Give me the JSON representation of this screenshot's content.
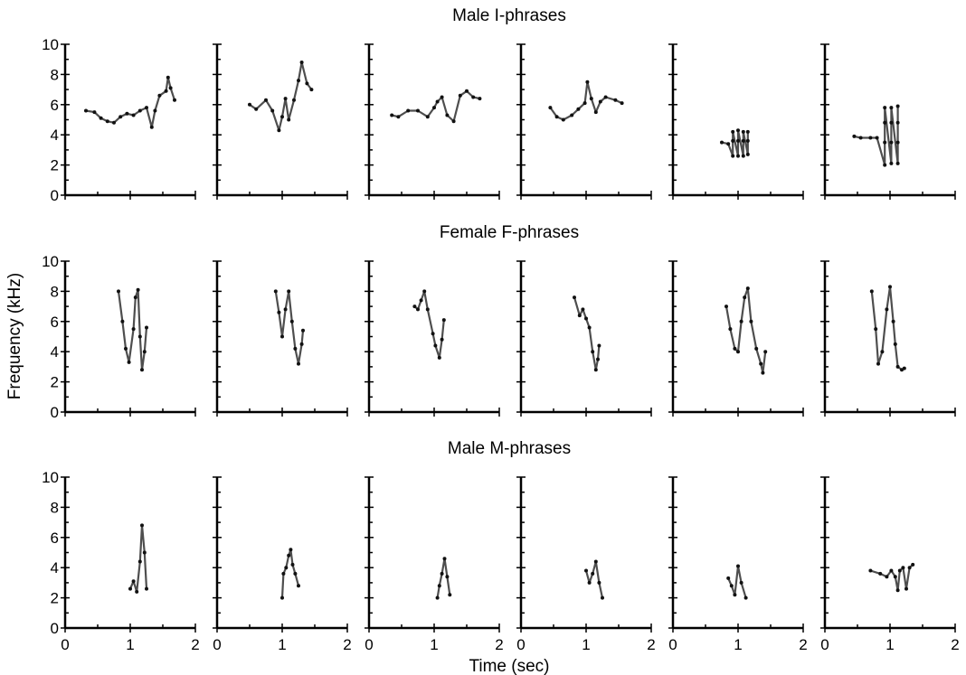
{
  "chart_data": {
    "type": "scatter",
    "ylabel": "Frequency (kHz)",
    "xlabel": "Time (sec)",
    "xlim": [
      0,
      2
    ],
    "ylim": [
      0,
      10
    ],
    "x_ticks": [
      0,
      1,
      2
    ],
    "y_ticks": [
      0,
      2,
      4,
      6,
      8,
      10
    ],
    "grid": false,
    "rows": [
      {
        "title": "Male I-phrases",
        "panels": [
          [
            [
              0.32,
              5.6
            ],
            [
              0.45,
              5.5
            ],
            [
              0.55,
              5.1
            ],
            [
              0.65,
              4.9
            ],
            [
              0.75,
              4.8
            ],
            [
              0.85,
              5.2
            ],
            [
              0.95,
              5.4
            ],
            [
              1.05,
              5.3
            ],
            [
              1.15,
              5.6
            ],
            [
              1.25,
              5.8
            ],
            [
              1.33,
              4.5
            ],
            [
              1.38,
              5.6
            ],
            [
              1.45,
              6.6
            ],
            [
              1.55,
              6.9
            ],
            [
              1.58,
              7.8
            ],
            [
              1.62,
              7.1
            ],
            [
              1.68,
              6.3
            ]
          ],
          [
            [
              0.5,
              6.0
            ],
            [
              0.6,
              5.7
            ],
            [
              0.75,
              6.3
            ],
            [
              0.85,
              5.6
            ],
            [
              0.95,
              4.3
            ],
            [
              1.0,
              5.2
            ],
            [
              1.05,
              6.4
            ],
            [
              1.1,
              5.0
            ],
            [
              1.18,
              6.3
            ],
            [
              1.25,
              7.6
            ],
            [
              1.3,
              8.8
            ],
            [
              1.38,
              7.4
            ],
            [
              1.45,
              7.0
            ]
          ],
          [
            [
              0.35,
              5.3
            ],
            [
              0.45,
              5.2
            ],
            [
              0.6,
              5.6
            ],
            [
              0.75,
              5.6
            ],
            [
              0.9,
              5.2
            ],
            [
              1.0,
              5.8
            ],
            [
              1.05,
              6.2
            ],
            [
              1.12,
              6.5
            ],
            [
              1.2,
              5.3
            ],
            [
              1.3,
              4.9
            ],
            [
              1.4,
              6.6
            ],
            [
              1.5,
              6.9
            ],
            [
              1.6,
              6.5
            ],
            [
              1.7,
              6.4
            ]
          ],
          [
            [
              0.45,
              5.8
            ],
            [
              0.55,
              5.2
            ],
            [
              0.65,
              5.0
            ],
            [
              0.78,
              5.3
            ],
            [
              0.88,
              5.7
            ],
            [
              0.98,
              6.1
            ],
            [
              1.02,
              7.5
            ],
            [
              1.08,
              6.4
            ],
            [
              1.15,
              5.5
            ],
            [
              1.22,
              6.2
            ],
            [
              1.3,
              6.5
            ],
            [
              1.45,
              6.3
            ],
            [
              1.55,
              6.1
            ]
          ],
          [
            [
              0.75,
              3.5
            ],
            [
              0.85,
              3.4
            ],
            [
              0.92,
              2.6
            ],
            [
              0.92,
              3.6
            ],
            [
              0.92,
              4.2
            ],
            [
              1.0,
              2.6
            ],
            [
              1.0,
              3.6
            ],
            [
              1.0,
              4.3
            ],
            [
              1.08,
              2.6
            ],
            [
              1.08,
              3.6
            ],
            [
              1.08,
              4.2
            ],
            [
              1.15,
              2.7
            ],
            [
              1.15,
              3.6
            ],
            [
              1.15,
              4.2
            ]
          ],
          [
            [
              0.45,
              3.9
            ],
            [
              0.55,
              3.8
            ],
            [
              0.7,
              3.8
            ],
            [
              0.8,
              3.8
            ],
            [
              0.92,
              2.0
            ],
            [
              0.92,
              3.5
            ],
            [
              0.92,
              4.8
            ],
            [
              0.92,
              5.8
            ],
            [
              1.02,
              2.1
            ],
            [
              1.02,
              3.5
            ],
            [
              1.02,
              4.8
            ],
            [
              1.02,
              5.8
            ],
            [
              1.12,
              2.1
            ],
            [
              1.12,
              3.5
            ],
            [
              1.12,
              4.8
            ],
            [
              1.12,
              5.9
            ]
          ]
        ]
      },
      {
        "title": "Female F-phrases",
        "panels": [
          [
            [
              0.82,
              8.0
            ],
            [
              0.88,
              6.0
            ],
            [
              0.93,
              4.2
            ],
            [
              0.98,
              3.3
            ],
            [
              1.05,
              5.5
            ],
            [
              1.08,
              7.6
            ],
            [
              1.12,
              8.1
            ],
            [
              1.15,
              5.0
            ],
            [
              1.18,
              2.8
            ],
            [
              1.22,
              4.0
            ],
            [
              1.25,
              5.6
            ]
          ],
          [
            [
              0.9,
              8.0
            ],
            [
              0.95,
              6.6
            ],
            [
              1.0,
              5.0
            ],
            [
              1.05,
              6.8
            ],
            [
              1.1,
              8.0
            ],
            [
              1.15,
              6.0
            ],
            [
              1.2,
              4.2
            ],
            [
              1.25,
              3.2
            ],
            [
              1.3,
              4.5
            ],
            [
              1.32,
              5.4
            ]
          ],
          [
            [
              0.7,
              7.0
            ],
            [
              0.75,
              6.8
            ],
            [
              0.8,
              7.4
            ],
            [
              0.85,
              8.0
            ],
            [
              0.9,
              6.8
            ],
            [
              0.98,
              5.2
            ],
            [
              1.02,
              4.4
            ],
            [
              1.08,
              3.6
            ],
            [
              1.12,
              4.8
            ],
            [
              1.15,
              6.1
            ]
          ],
          [
            [
              0.82,
              7.6
            ],
            [
              0.9,
              6.4
            ],
            [
              0.95,
              6.8
            ],
            [
              1.0,
              6.2
            ],
            [
              1.05,
              5.6
            ],
            [
              1.1,
              4.0
            ],
            [
              1.15,
              2.8
            ],
            [
              1.18,
              3.5
            ],
            [
              1.2,
              4.4
            ]
          ],
          [
            [
              0.82,
              7.0
            ],
            [
              0.88,
              5.5
            ],
            [
              0.95,
              4.2
            ],
            [
              1.0,
              4.0
            ],
            [
              1.05,
              6.0
            ],
            [
              1.1,
              7.6
            ],
            [
              1.15,
              8.2
            ],
            [
              1.2,
              6.0
            ],
            [
              1.28,
              4.2
            ],
            [
              1.35,
              3.2
            ],
            [
              1.38,
              2.6
            ],
            [
              1.42,
              4.0
            ]
          ],
          [
            [
              0.72,
              8.0
            ],
            [
              0.78,
              5.5
            ],
            [
              0.82,
              3.2
            ],
            [
              0.88,
              4.0
            ],
            [
              0.95,
              6.8
            ],
            [
              1.0,
              8.3
            ],
            [
              1.05,
              6.0
            ],
            [
              1.08,
              4.5
            ],
            [
              1.12,
              3.0
            ],
            [
              1.18,
              2.8
            ],
            [
              1.22,
              2.9
            ]
          ]
        ]
      },
      {
        "title": "Male M-phrases",
        "panels": [
          [
            [
              1.0,
              2.6
            ],
            [
              1.05,
              3.1
            ],
            [
              1.1,
              2.4
            ],
            [
              1.15,
              4.4
            ],
            [
              1.18,
              6.8
            ],
            [
              1.22,
              5.0
            ],
            [
              1.25,
              2.6
            ]
          ],
          [
            [
              1.0,
              2.0
            ],
            [
              1.02,
              3.6
            ],
            [
              1.06,
              4.0
            ],
            [
              1.1,
              4.8
            ],
            [
              1.13,
              5.2
            ],
            [
              1.16,
              4.2
            ],
            [
              1.2,
              3.6
            ],
            [
              1.25,
              2.8
            ]
          ],
          [
            [
              1.05,
              2.0
            ],
            [
              1.08,
              2.8
            ],
            [
              1.12,
              3.6
            ],
            [
              1.16,
              4.6
            ],
            [
              1.2,
              3.4
            ],
            [
              1.24,
              2.2
            ]
          ],
          [
            [
              1.0,
              3.8
            ],
            [
              1.05,
              3.0
            ],
            [
              1.1,
              3.6
            ],
            [
              1.15,
              4.4
            ],
            [
              1.2,
              3.0
            ],
            [
              1.25,
              2.0
            ]
          ],
          [
            [
              0.85,
              3.3
            ],
            [
              0.9,
              2.8
            ],
            [
              0.95,
              2.2
            ],
            [
              1.0,
              4.1
            ],
            [
              1.05,
              3.0
            ],
            [
              1.12,
              2.0
            ]
          ],
          [
            [
              0.7,
              3.8
            ],
            [
              0.85,
              3.6
            ],
            [
              0.95,
              3.4
            ],
            [
              1.02,
              3.8
            ],
            [
              1.08,
              3.4
            ],
            [
              1.12,
              2.5
            ],
            [
              1.15,
              3.8
            ],
            [
              1.2,
              4.0
            ],
            [
              1.25,
              2.6
            ],
            [
              1.3,
              4.0
            ],
            [
              1.35,
              4.2
            ]
          ]
        ]
      }
    ]
  }
}
